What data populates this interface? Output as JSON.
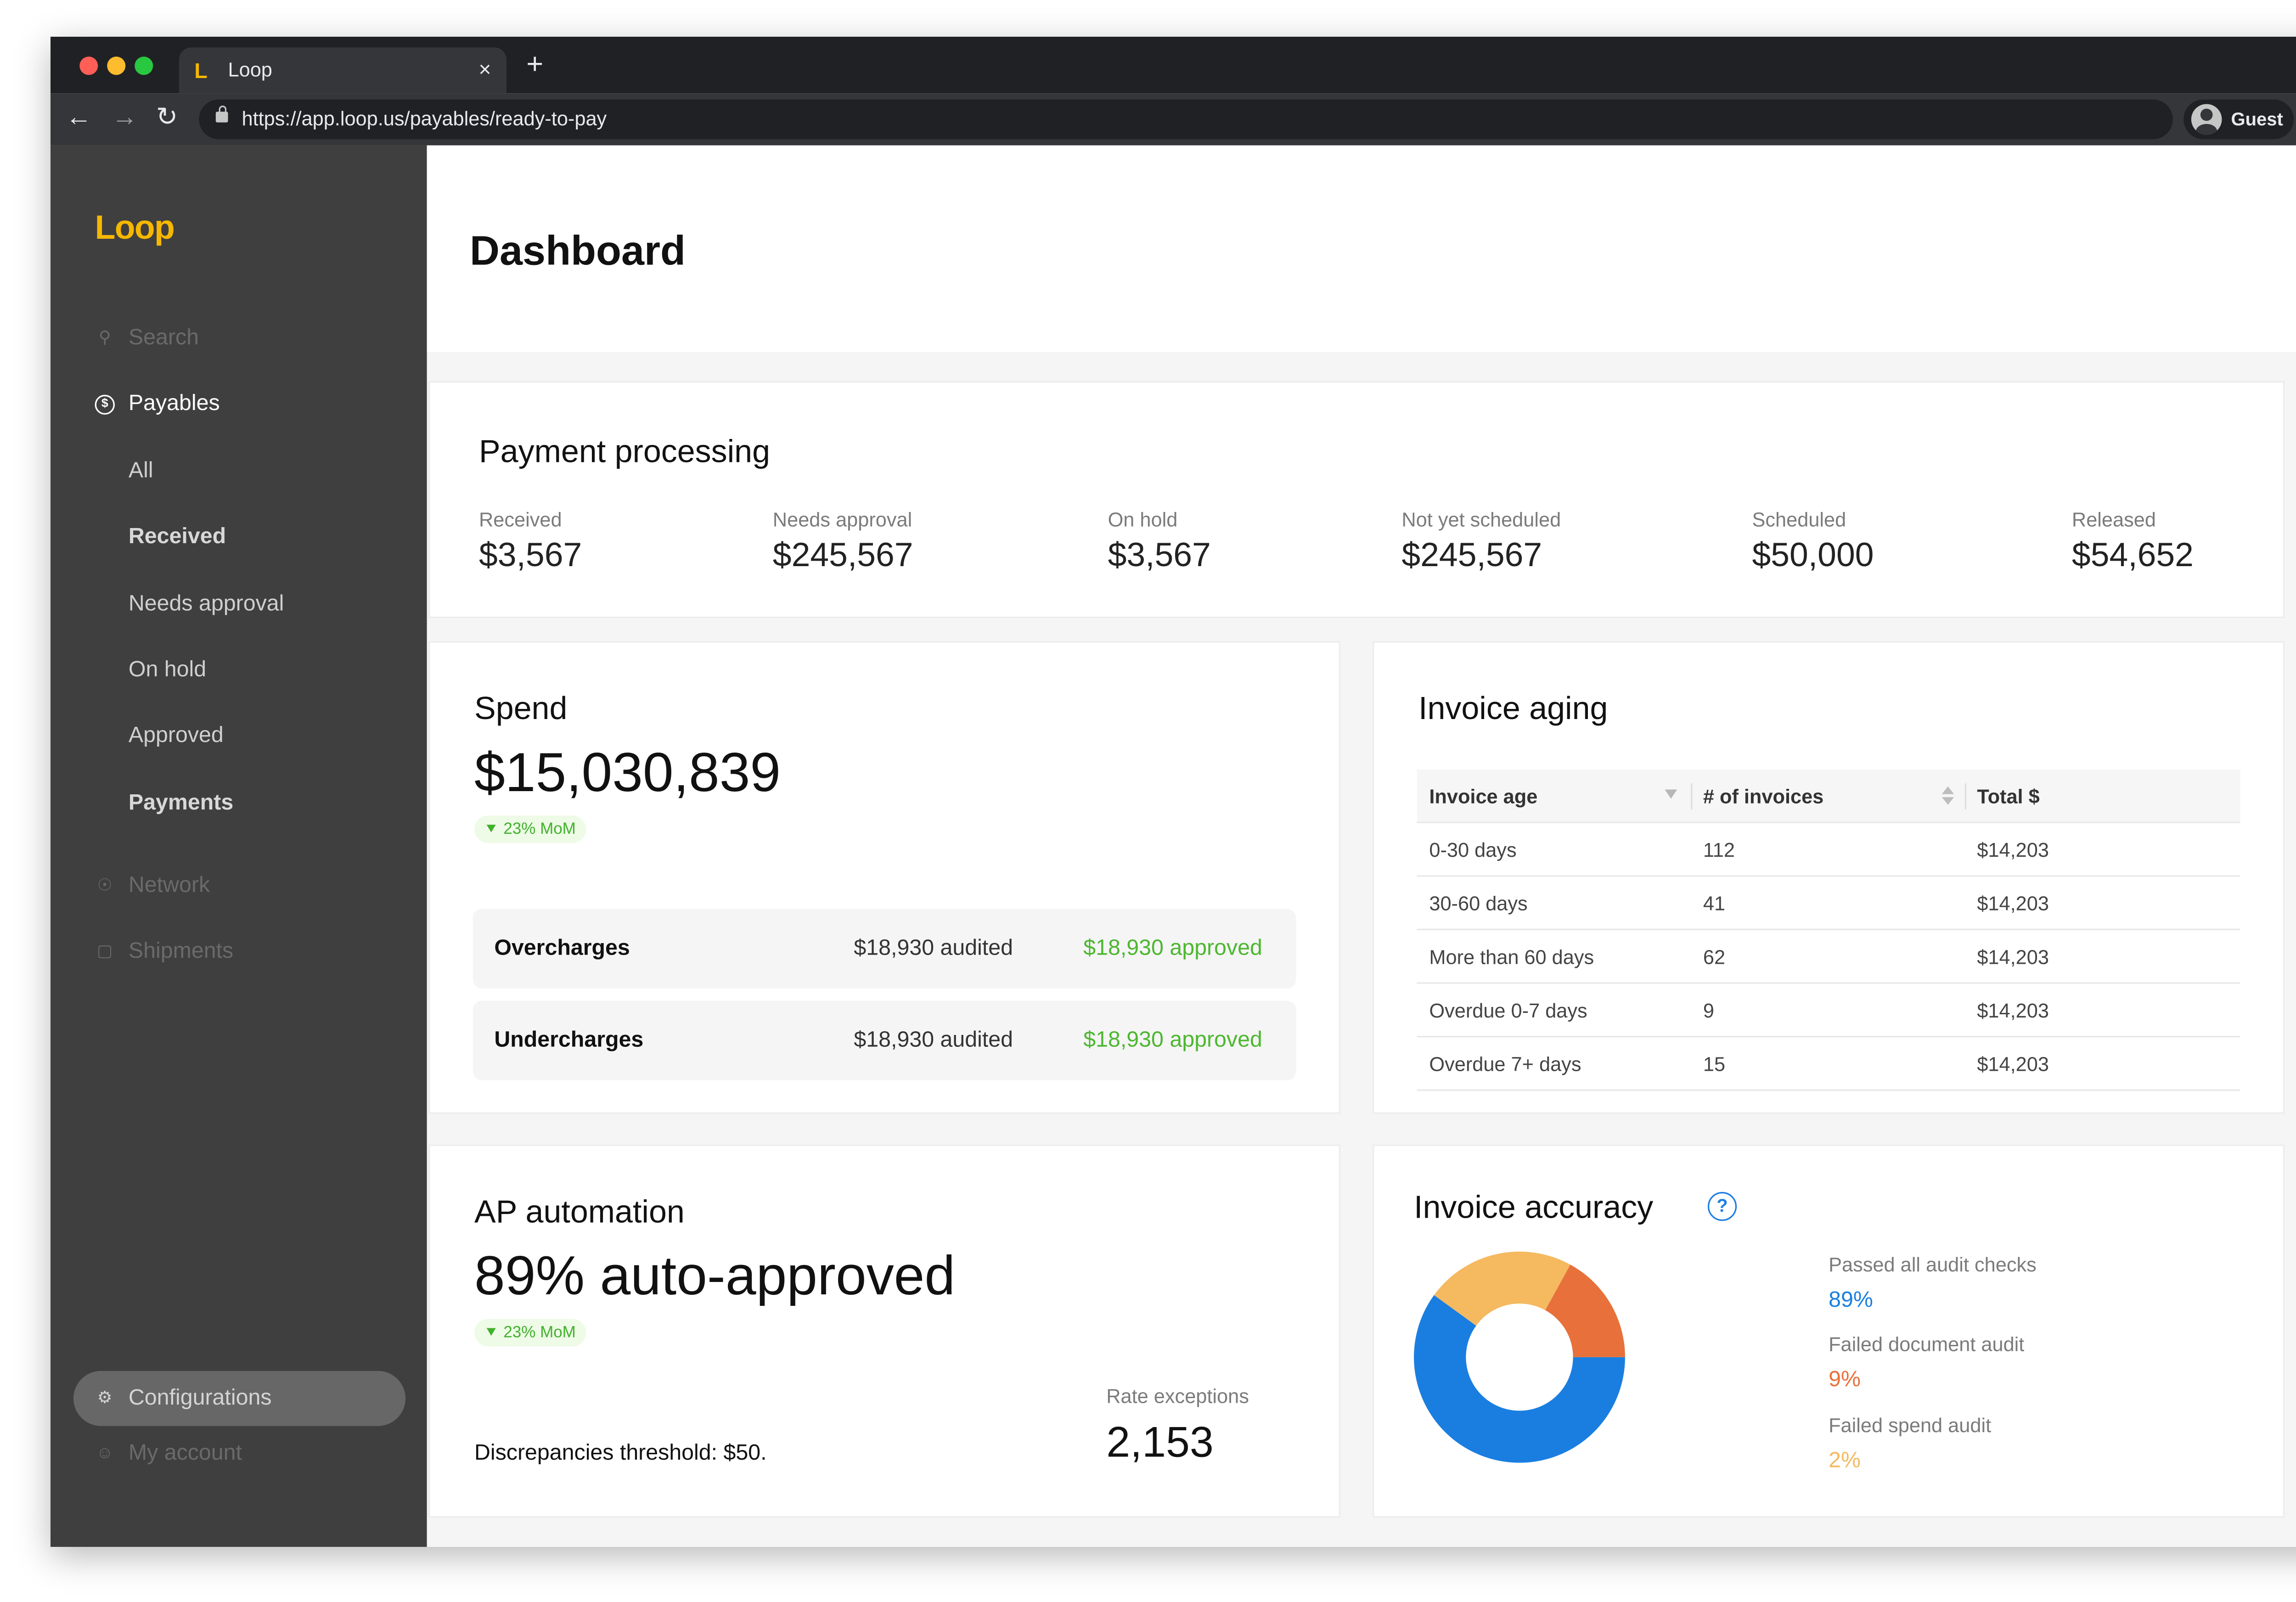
{
  "browser": {
    "tab_title": "Loop",
    "tab_favicon": "L",
    "tab_close": "×",
    "new_tab": "+",
    "url": "https://app.loop.us/payables/ready-to-pay",
    "profile_name": "Guest",
    "back": "←",
    "forward": "→",
    "reload": "↻"
  },
  "app": {
    "logo": "Loop",
    "accent_color": "#f5b700"
  },
  "sidebar": {
    "search": "Search",
    "payables": "Payables",
    "sub_items": [
      "All",
      "Received",
      "Needs approval",
      "On hold",
      "Approved",
      "Payments"
    ],
    "network": "Network",
    "shipments": "Shipments",
    "configurations": "Configurations",
    "my_account": "My account"
  },
  "page": {
    "title": "Dashboard"
  },
  "payment_processing": {
    "title": "Payment processing",
    "stats": [
      {
        "label": "Received",
        "value": "$3,567"
      },
      {
        "label": "Needs approval",
        "value": "$245,567"
      },
      {
        "label": "On hold",
        "value": "$3,567"
      },
      {
        "label": "Not yet scheduled",
        "value": "$245,567"
      },
      {
        "label": "Scheduled",
        "value": "$50,000"
      },
      {
        "label": "Released",
        "value": "$54,652"
      }
    ]
  },
  "spend": {
    "title": "Spend",
    "value": "$15,030,839",
    "change": "23% MoM",
    "rows": [
      {
        "name": "Overcharges",
        "audited": "$18,930 audited",
        "approved": "$18,930 approved"
      },
      {
        "name": "Undercharges",
        "audited": "$18,930 audited",
        "approved": "$18,930 approved"
      }
    ]
  },
  "invoice_aging": {
    "title": "Invoice aging",
    "columns": [
      "Invoice age",
      "# of invoices",
      "Total $"
    ],
    "rows": [
      [
        "0-30 days",
        "112",
        "$14,203"
      ],
      [
        "30-60 days",
        "41",
        "$14,203"
      ],
      [
        "More than 60 days",
        "62",
        "$14,203"
      ],
      [
        "Overdue 0-7 days",
        "9",
        "$14,203"
      ],
      [
        "Overdue 7+ days",
        "15",
        "$14,203"
      ]
    ]
  },
  "ap_automation": {
    "title": "AP automation",
    "value": "89% auto-approved",
    "change": "23% MoM",
    "threshold": "Discrepancies threshold: $50.",
    "rate_exceptions_label": "Rate exceptions",
    "rate_exceptions_value": "2,153"
  },
  "invoice_accuracy": {
    "title": "Invoice accuracy",
    "help": "?",
    "items": [
      {
        "label": "Passed all audit checks",
        "value": "89%",
        "color": "#1a7ee0"
      },
      {
        "label": "Failed document audit",
        "value": "9%",
        "color": "#e8703a"
      },
      {
        "label": "Failed spend audit",
        "value": "2%",
        "color": "#f5b95f"
      }
    ]
  },
  "chart_data": {
    "type": "pie",
    "categories": [
      "Passed all audit checks",
      "Failed document audit",
      "Failed spend audit"
    ],
    "values": [
      89,
      9,
      2
    ],
    "colors": [
      "#1a7ee0",
      "#e8703a",
      "#f5b95f"
    ]
  }
}
